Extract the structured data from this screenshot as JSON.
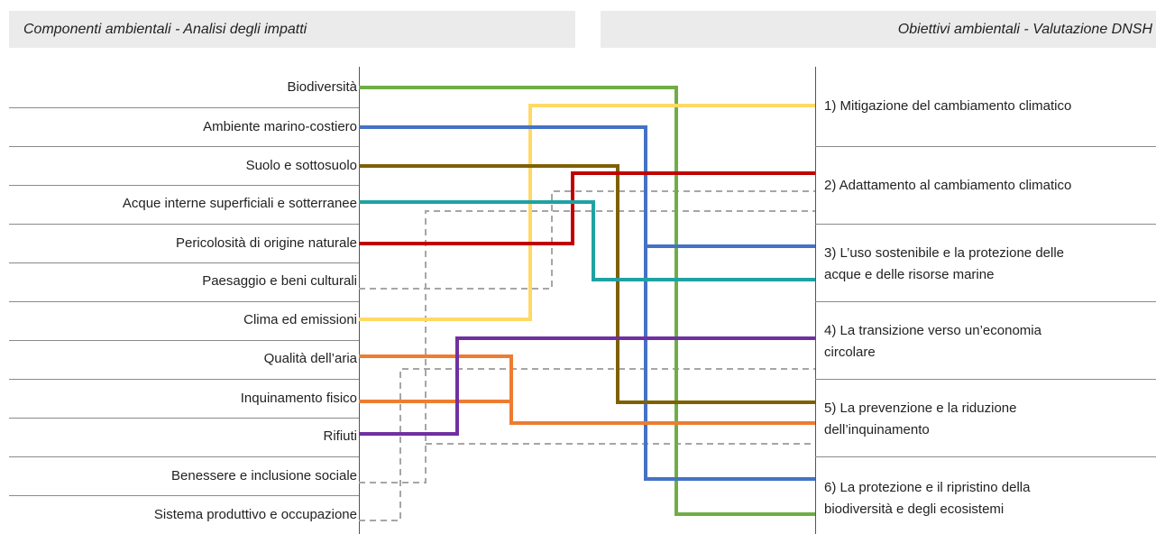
{
  "headers": {
    "left": "Componenti ambientali  - Analisi degli impatti",
    "right": "Obiettivi ambientali - Valutazione DNSH"
  },
  "components": [
    "Biodiversità",
    "Ambiente marino-costiero",
    "Suolo e sottosuolo",
    "Acque interne superficiali e sotterranee",
    "Pericolosità di origine naturale",
    "Paesaggio e beni culturali",
    "Clima ed emissioni",
    "Qualità dell’aria",
    "Inquinamento fisico",
    "Rifiuti",
    "Benessere  e inclusione sociale",
    "Sistema produttivo e occupazione"
  ],
  "objectives": [
    {
      "line1": "1) Mitigazione del cambiamento climatico",
      "line2": ""
    },
    {
      "line1": "2) Adattamento al cambiamento climatico",
      "line2": ""
    },
    {
      "line1": "3) L’uso sostenibile e la protezione delle",
      "line2": "acque e delle risorse marine"
    },
    {
      "line1": "4) La transizione verso un’economia",
      "line2": "circolare"
    },
    {
      "line1": "5) La prevenzione e la riduzione",
      "line2": "dell’inquinamento"
    },
    {
      "line1": "6) La protezione e il ripristino della",
      "line2": "biodiversità e degli ecosistemi"
    }
  ],
  "colors": {
    "green": "#70ad47",
    "yellow": "#ffd966",
    "blue": "#4472c4",
    "brown": "#7f6000",
    "red": "#c00000",
    "teal": "#1fa2a2",
    "orange": "#ed7d31",
    "purple": "#7030a0",
    "dashed": "#a6a6a6"
  },
  "links": [
    {
      "component": "Biodiversità",
      "objective": "6) La protezione e il ripristino della biodiversità e degli ecosistemi",
      "color": "green",
      "style": "solid"
    },
    {
      "component": "Ambiente marino-costiero",
      "objective": "6) La protezione e il ripristino della biodiversità e degli ecosistemi",
      "color": "blue",
      "style": "solid"
    },
    {
      "component": "Ambiente marino-costiero",
      "objective": "3) L’uso sostenibile e la protezione delle acque e delle risorse marine",
      "color": "blue",
      "style": "solid"
    },
    {
      "component": "Suolo e sottosuolo",
      "objective": "5) La prevenzione e la riduzione dell’inquinamento",
      "color": "brown",
      "style": "solid"
    },
    {
      "component": "Acque interne superficiali e sotterranee",
      "objective": "3) L’uso sostenibile e la protezione delle acque e delle risorse marine",
      "color": "teal",
      "style": "solid"
    },
    {
      "component": "Pericolosità di origine naturale",
      "objective": "2) Adattamento al cambiamento climatico",
      "color": "red",
      "style": "solid"
    },
    {
      "component": "Paesaggio e beni culturali",
      "objective": "2) Adattamento al cambiamento climatico",
      "color": "dashed",
      "style": "dashed"
    },
    {
      "component": "Clima ed emissioni",
      "objective": "1) Mitigazione del cambiamento climatico",
      "color": "yellow",
      "style": "solid"
    },
    {
      "component": "Qualità dell’aria",
      "objective": "5) La prevenzione e la riduzione dell’inquinamento",
      "color": "orange",
      "style": "solid"
    },
    {
      "component": "Inquinamento fisico",
      "objective": "5) La prevenzione e la riduzione dell’inquinamento",
      "color": "orange",
      "style": "solid"
    },
    {
      "component": "Rifiuti",
      "objective": "4) La transizione verso un’economia circolare",
      "color": "purple",
      "style": "solid"
    },
    {
      "component": "Benessere  e inclusione sociale",
      "objective": "2) Adattamento al cambiamento climatico",
      "color": "dashed",
      "style": "dashed"
    },
    {
      "component": "Benessere  e inclusione sociale",
      "objective": "5) La prevenzione e la riduzione dell’inquinamento",
      "color": "dashed",
      "style": "dashed"
    },
    {
      "component": "Sistema produttivo e occupazione",
      "objective": "4) La transizione verso un’economia circolare",
      "color": "dashed",
      "style": "dashed"
    }
  ]
}
